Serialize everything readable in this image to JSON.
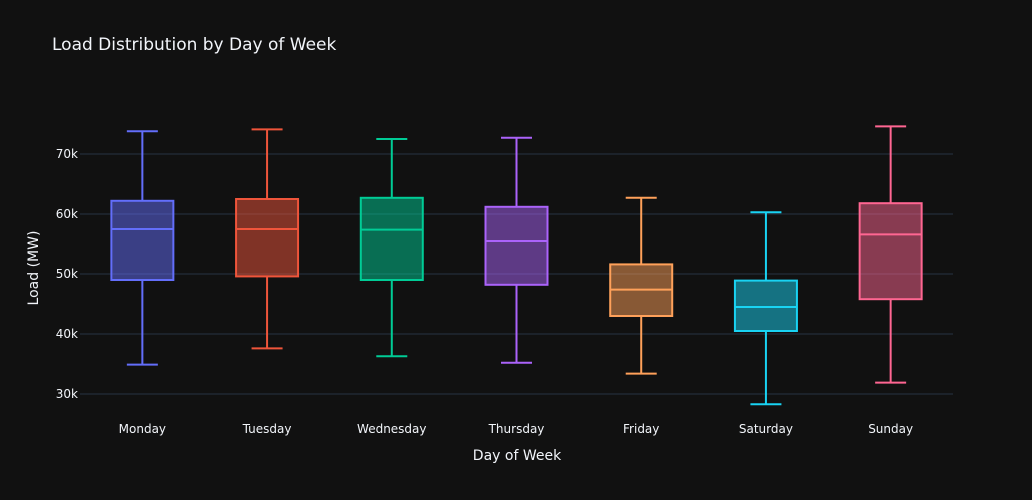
{
  "chart_data": {
    "type": "box",
    "title": "Load Distribution by Day of Week",
    "xlabel": "Day of Week",
    "ylabel": "Load (MW)",
    "ylim": [
      26500,
      79000
    ],
    "yticks": [
      30000,
      40000,
      50000,
      60000,
      70000
    ],
    "ytick_labels": [
      "30k",
      "40k",
      "50k",
      "60k",
      "70k"
    ],
    "grid": true,
    "legend": "none",
    "series": [
      {
        "name": "Monday",
        "color": "#636efa",
        "min": 34900,
        "q1": 49000,
        "median": 57500,
        "q3": 62200,
        "max": 73800
      },
      {
        "name": "Tuesday",
        "color": "#ef553b",
        "min": 37600,
        "q1": 49600,
        "median": 57500,
        "q3": 62500,
        "max": 74100
      },
      {
        "name": "Wednesday",
        "color": "#00cc96",
        "min": 36300,
        "q1": 49000,
        "median": 57400,
        "q3": 62700,
        "max": 72500
      },
      {
        "name": "Thursday",
        "color": "#ab63fa",
        "min": 35200,
        "q1": 48200,
        "median": 55500,
        "q3": 61200,
        "max": 72700
      },
      {
        "name": "Friday",
        "color": "#ffa15a",
        "min": 33400,
        "q1": 43000,
        "median": 47400,
        "q3": 51600,
        "max": 62700
      },
      {
        "name": "Saturday",
        "color": "#19d3f3",
        "min": 28300,
        "q1": 40500,
        "median": 44500,
        "q3": 48900,
        "max": 60300
      },
      {
        "name": "Sunday",
        "color": "#ff6692",
        "min": 31900,
        "q1": 45800,
        "median": 56600,
        "q3": 61800,
        "max": 74600
      }
    ]
  }
}
